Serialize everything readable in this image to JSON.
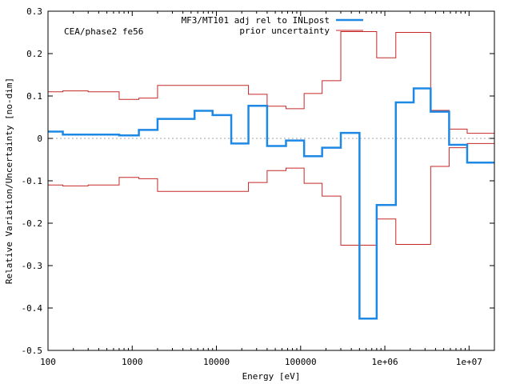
{
  "chart_data": {
    "type": "line",
    "title": "",
    "annotation": "CEA/phase2 fe56",
    "xlabel": "Energy [eV]",
    "ylabel": "Relative Variation/Uncertainty [no-dim]",
    "xscale": "log",
    "xlim": [
      100,
      20000000
    ],
    "ylim": [
      -0.5,
      0.3
    ],
    "x_ticks": [
      {
        "value": 100,
        "label": "100"
      },
      {
        "value": 1000,
        "label": "1000"
      },
      {
        "value": 10000,
        "label": "10000"
      },
      {
        "value": 100000,
        "label": "100000"
      },
      {
        "value": 1000000,
        "label": "1e+06"
      },
      {
        "value": 10000000,
        "label": "1e+07"
      }
    ],
    "y_ticks": [
      {
        "value": 0.3,
        "label": "0.3"
      },
      {
        "value": 0.2,
        "label": "0.2"
      },
      {
        "value": 0.1,
        "label": "0.1"
      },
      {
        "value": 0,
        "label": "0"
      },
      {
        "value": -0.1,
        "label": "-0.1"
      },
      {
        "value": -0.2,
        "label": "-0.2"
      },
      {
        "value": -0.3,
        "label": "-0.3"
      },
      {
        "value": -0.4,
        "label": "-0.4"
      },
      {
        "value": -0.5,
        "label": "-0.5"
      }
    ],
    "legend_position": "top-right",
    "series": [
      {
        "name": "MF3/MT101 adj rel to INLpost",
        "color": "#1e88e5",
        "step": true,
        "bins": [
          {
            "x0": 100,
            "x1": 150,
            "y": 0.016
          },
          {
            "x0": 150,
            "x1": 700,
            "y": 0.009
          },
          {
            "x0": 700,
            "x1": 1200,
            "y": 0.007
          },
          {
            "x0": 1200,
            "x1": 2000,
            "y": 0.02
          },
          {
            "x0": 2000,
            "x1": 5500,
            "y": 0.046
          },
          {
            "x0": 5500,
            "x1": 9000,
            "y": 0.065
          },
          {
            "x0": 9000,
            "x1": 15000,
            "y": 0.055
          },
          {
            "x0": 15000,
            "x1": 24000,
            "y": -0.012
          },
          {
            "x0": 24000,
            "x1": 40000,
            "y": 0.077
          },
          {
            "x0": 40000,
            "x1": 67000,
            "y": -0.018
          },
          {
            "x0": 67000,
            "x1": 110000,
            "y": -0.005
          },
          {
            "x0": 110000,
            "x1": 180000,
            "y": -0.042
          },
          {
            "x0": 180000,
            "x1": 300000,
            "y": -0.022
          },
          {
            "x0": 300000,
            "x1": 500000,
            "y": 0.013
          },
          {
            "x0": 500000,
            "x1": 800000,
            "y": -0.425
          },
          {
            "x0": 800000,
            "x1": 1350000,
            "y": -0.157
          },
          {
            "x0": 1350000,
            "x1": 2200000,
            "y": 0.085
          },
          {
            "x0": 2200000,
            "x1": 3500000,
            "y": 0.118
          },
          {
            "x0": 3500000,
            "x1": 5800000,
            "y": 0.063
          },
          {
            "x0": 5800000,
            "x1": 9500000,
            "y": -0.015
          },
          {
            "x0": 9500000,
            "x1": 20000000,
            "y": -0.057
          }
        ]
      },
      {
        "name": "prior uncertainty",
        "color": "#c62828",
        "step": true,
        "mirrored": true,
        "bins": [
          {
            "x0": 100,
            "x1": 150,
            "y": 0.11
          },
          {
            "x0": 150,
            "x1": 300,
            "y": 0.112
          },
          {
            "x0": 300,
            "x1": 700,
            "y": 0.11
          },
          {
            "x0": 700,
            "x1": 1200,
            "y": 0.092
          },
          {
            "x0": 1200,
            "x1": 2000,
            "y": 0.095
          },
          {
            "x0": 2000,
            "x1": 24000,
            "y": 0.125
          },
          {
            "x0": 24000,
            "x1": 40000,
            "y": 0.104
          },
          {
            "x0": 40000,
            "x1": 67000,
            "y": 0.076
          },
          {
            "x0": 67000,
            "x1": 110000,
            "y": 0.07
          },
          {
            "x0": 110000,
            "x1": 180000,
            "y": 0.106
          },
          {
            "x0": 180000,
            "x1": 300000,
            "y": 0.136
          },
          {
            "x0": 300000,
            "x1": 800000,
            "y": 0.252
          },
          {
            "x0": 800000,
            "x1": 1350000,
            "y": 0.19
          },
          {
            "x0": 1350000,
            "x1": 3500000,
            "y": 0.25
          },
          {
            "x0": 3500000,
            "x1": 5800000,
            "y": 0.066
          },
          {
            "x0": 5800000,
            "x1": 9500000,
            "y": 0.022
          },
          {
            "x0": 9500000,
            "x1": 20000000,
            "y": 0.012
          }
        ]
      }
    ]
  }
}
